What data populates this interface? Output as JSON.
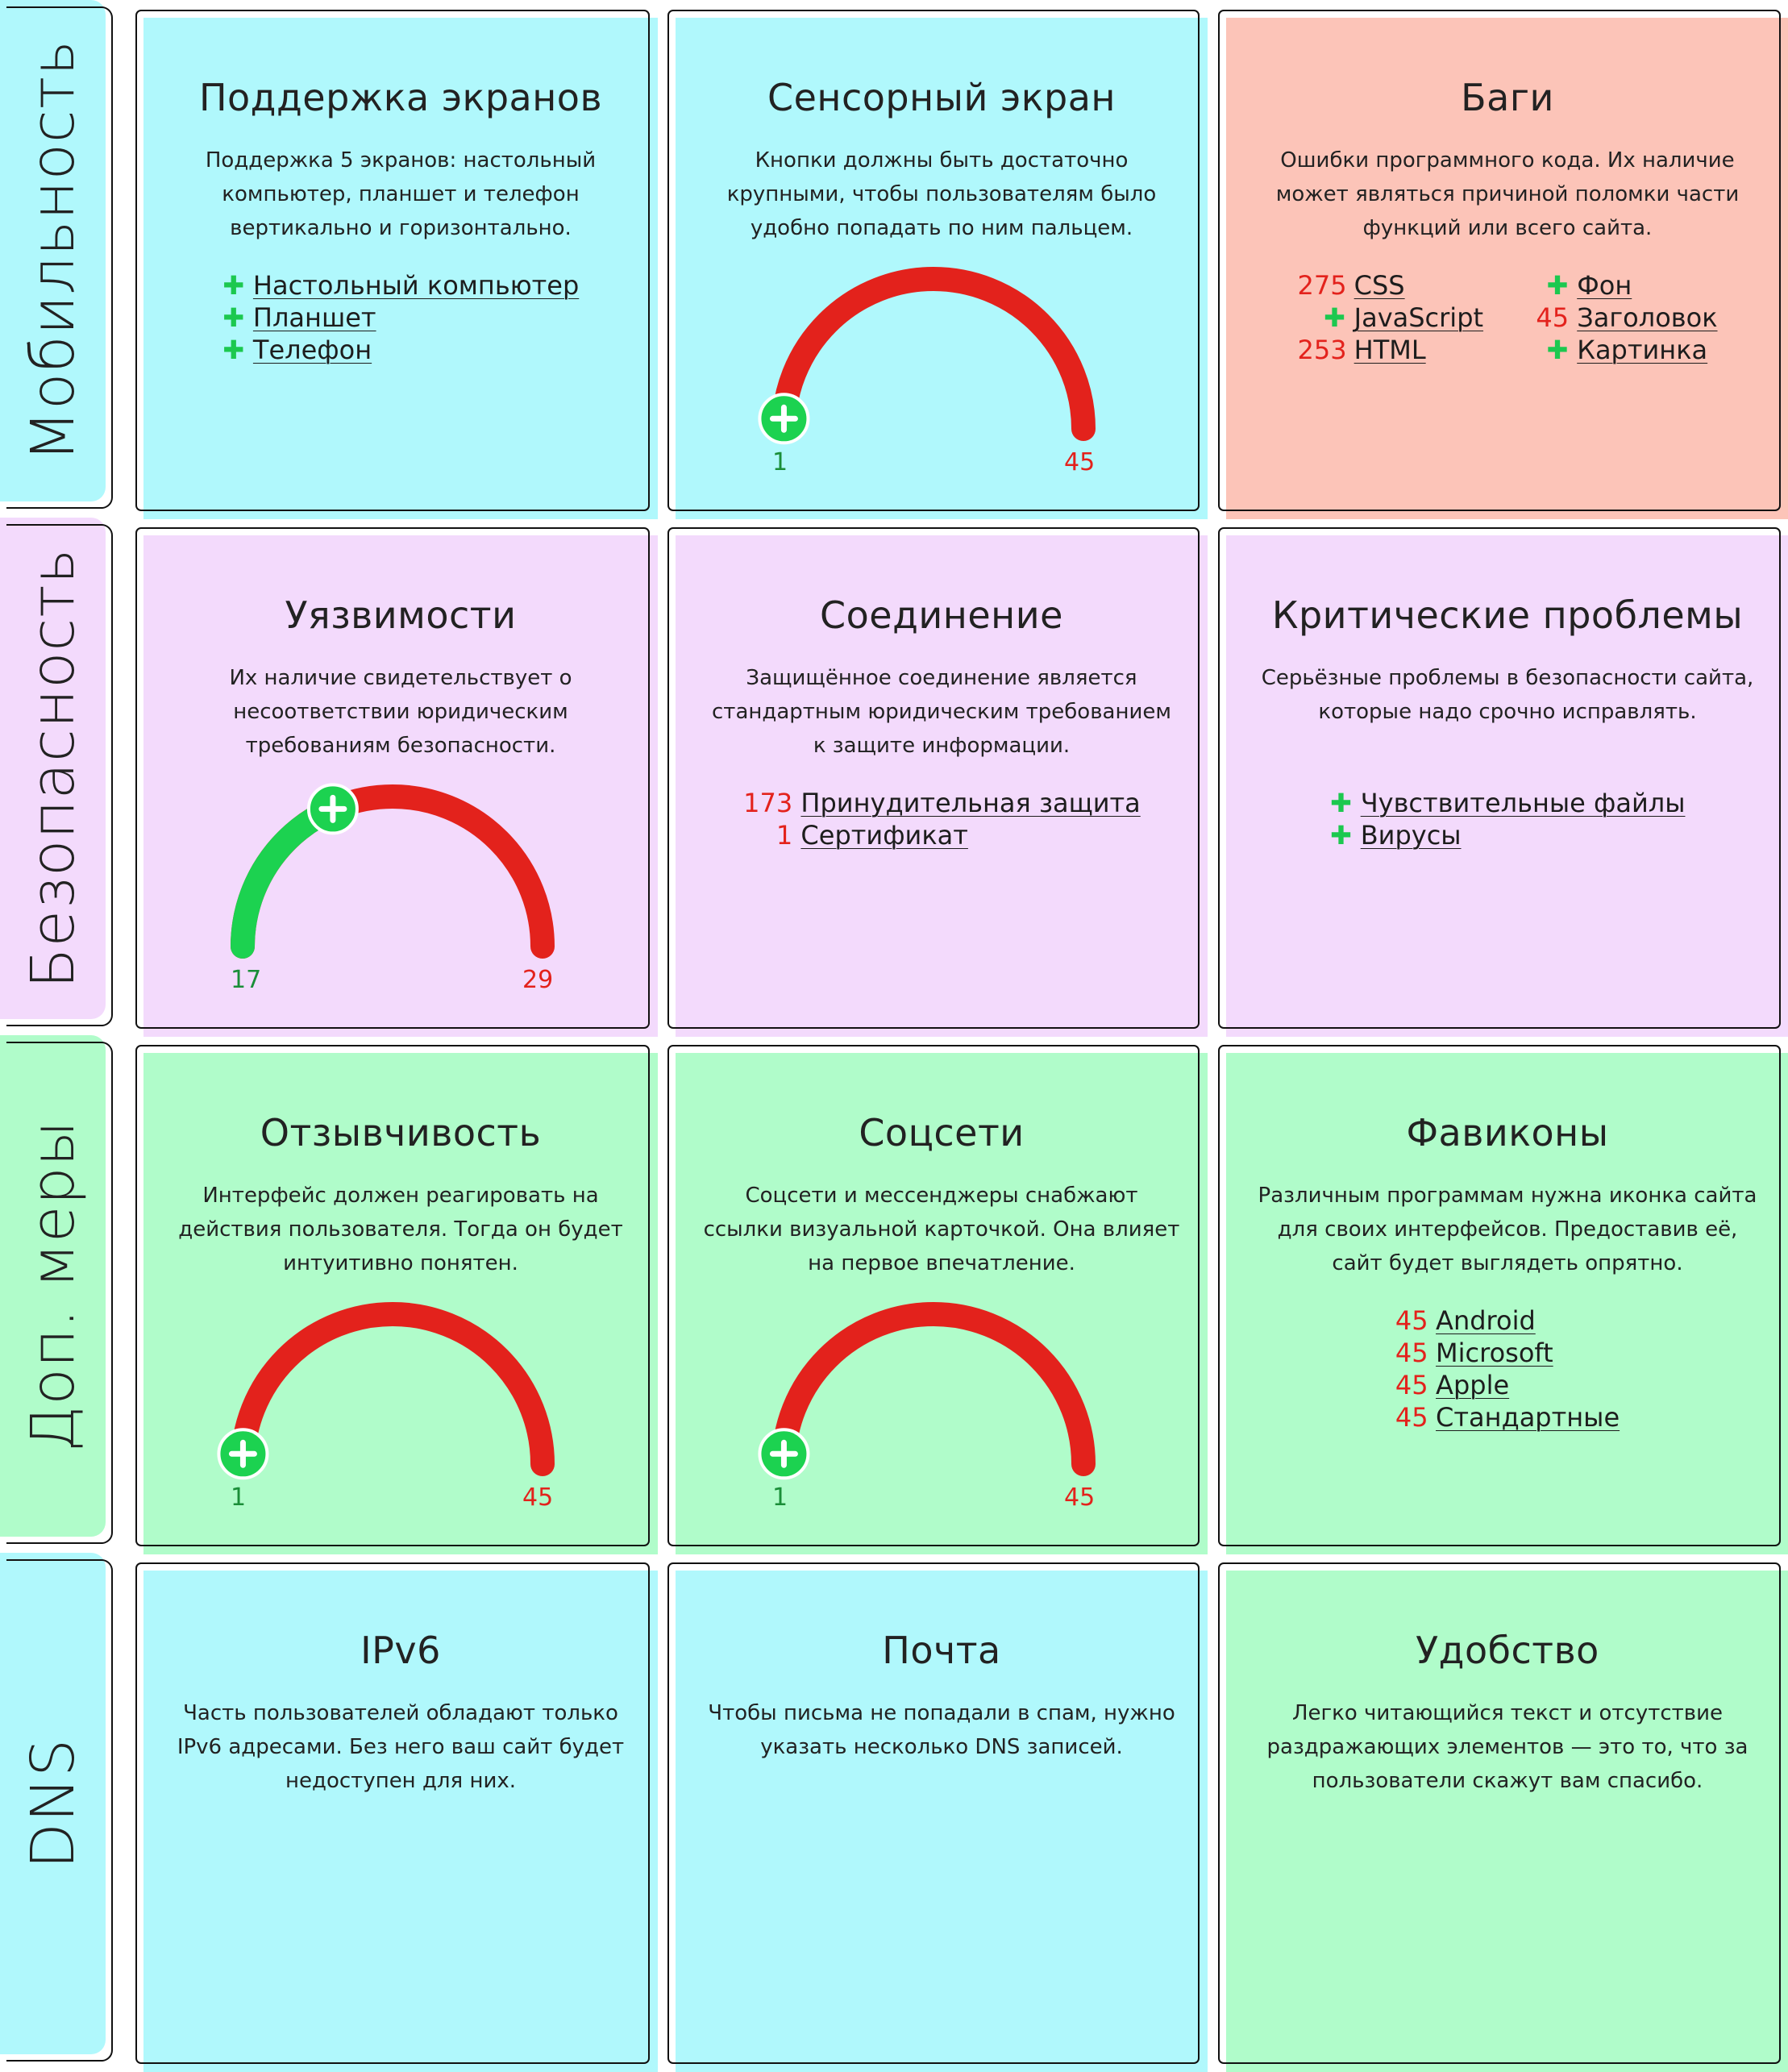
{
  "colors": {
    "cyan": "#b0f8fc",
    "pink": "#f3dafc",
    "green": "#b0fcca",
    "salmon": "#fcc4b8",
    "gauge_red": "#e3221c",
    "gauge_green": "#1cd250"
  },
  "rows": [
    {
      "label": "Мобильность"
    },
    {
      "label": "Безопасность"
    },
    {
      "label": "Доп. меры"
    },
    {
      "label": "DNS"
    }
  ],
  "cards": {
    "screens": {
      "title": "Поддержка экранов",
      "desc": "Поддержка 5 экранов: настольный компьютер, планшет и телефон вертикально и горизонтально.",
      "items": [
        "Настольный компьютер",
        "Планшет",
        "Телефон"
      ]
    },
    "touch": {
      "title": "Сенсорный экран",
      "desc": "Кнопки должны быть достаточно крупными, чтобы пользователям было удобно попадать по ним пальцем.",
      "gauge": {
        "pass": 1,
        "fail": 45
      }
    },
    "bugs": {
      "title": "Баги",
      "desc": "Ошибки программного кода. Их наличие может являться причиной поломки части функций или всего сайта.",
      "left": [
        {
          "count": "275",
          "label": "CSS"
        },
        {
          "count": "",
          "label": "JavaScript"
        },
        {
          "count": "253",
          "label": "HTML"
        }
      ],
      "right": [
        {
          "count": "",
          "label": "Фон"
        },
        {
          "count": "45",
          "label": "Заголовок"
        },
        {
          "count": "",
          "label": "Картинка"
        }
      ]
    },
    "vuln": {
      "title": "Уязвимости",
      "desc": "Их наличие свидетельствует о несоответствии юридическим требованиям безопасности.",
      "gauge": {
        "pass": 17,
        "fail": 29
      }
    },
    "conn": {
      "title": "Соединение",
      "desc": "Защищённое соединение является стандартным юридическим требованием к защите информации.",
      "items": [
        {
          "count": "173",
          "label": "Принудительная защита"
        },
        {
          "count": "1",
          "label": "Сертификат"
        }
      ]
    },
    "critical": {
      "title": "Критические проблемы",
      "desc": "Серьёзные проблемы в безопасности сайта, которые надо срочно исправлять.",
      "items": [
        "Чувствительные файлы",
        "Вирусы"
      ]
    },
    "resp": {
      "title": "Отзывчивость",
      "desc": "Интерфейс должен реагировать на действия пользователя. Тогда он будет интуитивно понятен.",
      "gauge": {
        "pass": 1,
        "fail": 45
      }
    },
    "social": {
      "title": "Соцсети",
      "desc": "Соцсети и мессенджеры снабжают ссылки визуальной карточкой. Она влияет на первое впечатление.",
      "gauge": {
        "pass": 1,
        "fail": 45
      }
    },
    "favicon": {
      "title": "Фавиконы",
      "desc": "Различным программам нужна иконка сайта для своих интерфейсов. Предоставив её, сайт будет выглядеть опрятно.",
      "items": [
        {
          "count": "45",
          "label": "Android"
        },
        {
          "count": "45",
          "label": "Microsoft"
        },
        {
          "count": "45",
          "label": "Apple"
        },
        {
          "count": "45",
          "label": "Стандартные"
        }
      ]
    },
    "ipv6": {
      "title": "IPv6",
      "desc": "Часть пользователей обладают только IPv6 адресами. Без него ваш сайт будет недоступен для них."
    },
    "mail": {
      "title": "Почта",
      "desc": "Чтобы письма не попадали в спам, нужно указать несколько DNS записей."
    },
    "usability": {
      "title": "Удобство",
      "desc": "Легко читающийся текст и отсутствие раздражающих элементов — это то, что за пользователи скажут вам спасибо."
    }
  }
}
